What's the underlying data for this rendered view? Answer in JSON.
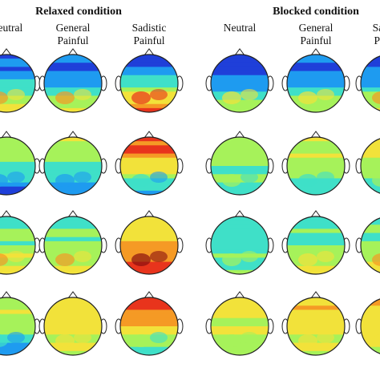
{
  "panels": [
    {
      "title": "Relaxed condition",
      "columns": [
        {
          "label_line1": "",
          "label_line2": "Neutral"
        },
        {
          "label_line1": "General",
          "label_line2": "Painful"
        },
        {
          "label_line1": "Sadistic",
          "label_line2": "Painful"
        }
      ]
    },
    {
      "title": "Blocked condition",
      "columns": [
        {
          "label_line1": "",
          "label_line2": "Neutral"
        },
        {
          "label_line1": "General",
          "label_line2": "Painful"
        },
        {
          "label_line1": "Sadistic",
          "label_line2": "Painful"
        }
      ]
    }
  ],
  "colormap": [
    "#1f3fd9",
    "#1e9bf0",
    "#3fe0c8",
    "#a6f25a",
    "#f2e23a",
    "#f59a25",
    "#e8341c",
    "#8a1010"
  ],
  "topomap_activation_levels": {
    "relaxed": [
      [
        [
          0.1,
          0.55
        ],
        [
          0.1,
          0.55
        ],
        [
          0.1,
          0.78
        ]
      ],
      [
        [
          0.45,
          0.12
        ],
        [
          0.48,
          0.15
        ],
        [
          0.78,
          0.18
        ]
      ],
      [
        [
          0.35,
          0.55
        ],
        [
          0.35,
          0.55
        ],
        [
          0.55,
          0.85
        ]
      ],
      [
        [
          0.5,
          0.18
        ],
        [
          0.55,
          0.5
        ],
        [
          0.8,
          0.3
        ]
      ]
    ],
    "blocked": [
      [
        [
          0.08,
          0.45
        ],
        [
          0.1,
          0.5
        ],
        [
          0.1,
          0.55
        ]
      ],
      [
        [
          0.45,
          0.3
        ],
        [
          0.5,
          0.25
        ],
        [
          0.55,
          0.3
        ]
      ],
      [
        [
          0.3,
          0.4
        ],
        [
          0.32,
          0.5
        ],
        [
          0.35,
          0.55
        ]
      ],
      [
        [
          0.55,
          0.4
        ],
        [
          0.6,
          0.45
        ],
        [
          0.62,
          0.45
        ]
      ]
    ]
  }
}
